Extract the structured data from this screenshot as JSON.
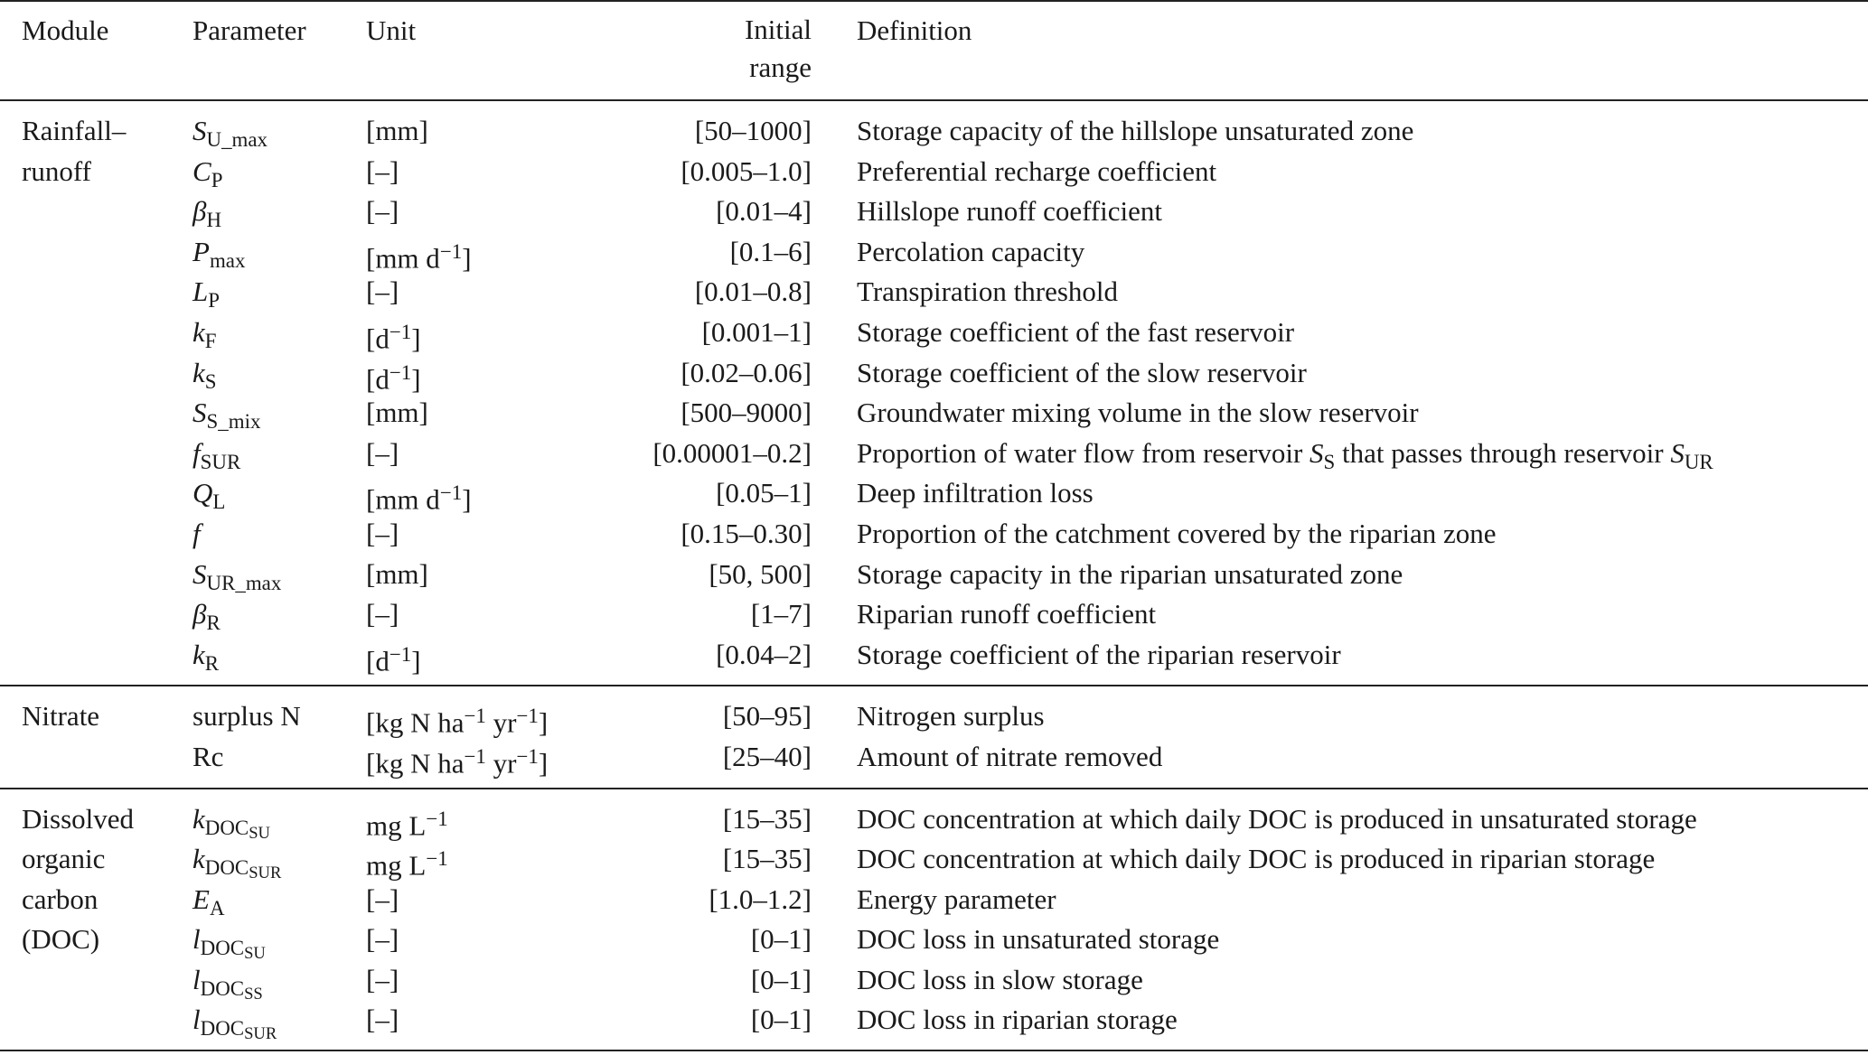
{
  "header": {
    "module": "Module",
    "parameter": "Parameter",
    "unit": "Unit",
    "range": [
      "Initial",
      "range"
    ],
    "definition": "Definition"
  },
  "groups": [
    {
      "module": [
        "Rainfall–",
        "runoff"
      ],
      "rows": [
        {
          "parameter": [
            {
              "i": "S"
            },
            {
              "sub": "U_max"
            }
          ],
          "unit": "[mm]",
          "range": "[50–1000]",
          "definition": "Storage capacity of the hillslope unsaturated zone"
        },
        {
          "parameter": [
            {
              "i": "C"
            },
            {
              "sub": "P"
            }
          ],
          "unit": "[–]",
          "range": "[0.005–1.0]",
          "definition": "Preferential recharge coefficient"
        },
        {
          "parameter": [
            {
              "i": "β"
            },
            {
              "sub": "H"
            }
          ],
          "unit": "[–]",
          "range": "[0.01–4]",
          "definition": "Hillslope runoff coefficient"
        },
        {
          "parameter": [
            {
              "i": "P"
            },
            {
              "sub": "max"
            }
          ],
          "unit": [
            {
              "t": "[mm d"
            },
            {
              "sup": "−1"
            },
            {
              "t": "]"
            }
          ],
          "range": "[0.1–6]",
          "definition": "Percolation capacity"
        },
        {
          "parameter": [
            {
              "i": "L"
            },
            {
              "sub": "P"
            }
          ],
          "unit": "[–]",
          "range": "[0.01–0.8]",
          "definition": "Transpiration threshold"
        },
        {
          "parameter": [
            {
              "i": "k"
            },
            {
              "sub": "F"
            }
          ],
          "unit": [
            {
              "t": "[d"
            },
            {
              "sup": "−1"
            },
            {
              "t": "]"
            }
          ],
          "range": "[0.001–1]",
          "definition": "Storage coefficient of the fast reservoir"
        },
        {
          "parameter": [
            {
              "i": "k"
            },
            {
              "sub": "S"
            }
          ],
          "unit": [
            {
              "t": "[d"
            },
            {
              "sup": "−1"
            },
            {
              "t": "]"
            }
          ],
          "range": "[0.02–0.06]",
          "definition": "Storage coefficient of the slow reservoir"
        },
        {
          "parameter": [
            {
              "i": "S"
            },
            {
              "sub": "S_mix"
            }
          ],
          "unit": "[mm]",
          "range": "[500–9000]",
          "definition": "Groundwater mixing volume in the slow reservoir"
        },
        {
          "parameter": [
            {
              "i": "f"
            },
            {
              "sub": "SUR"
            }
          ],
          "unit": "[–]",
          "range": "[0.00001–0.2]",
          "definition": [
            {
              "t": "Proportion of water flow from reservoir "
            },
            {
              "i": "S"
            },
            {
              "sub": "S"
            },
            {
              "t": " that passes through reservoir "
            },
            {
              "i": "S"
            },
            {
              "sub": "UR"
            }
          ]
        },
        {
          "parameter": [
            {
              "i": "Q"
            },
            {
              "sub": "L"
            }
          ],
          "unit": [
            {
              "t": "[mm d"
            },
            {
              "sup": "−1"
            },
            {
              "t": "]"
            }
          ],
          "range": "[0.05–1]",
          "definition": "Deep infiltration loss"
        },
        {
          "parameter": [
            {
              "i": "f"
            }
          ],
          "unit": "[–]",
          "range": "[0.15–0.30]",
          "definition": "Proportion of the catchment covered by the riparian zone"
        },
        {
          "parameter": [
            {
              "i": "S"
            },
            {
              "sub": "UR_max"
            }
          ],
          "unit": "[mm]",
          "range": "[50, 500]",
          "definition": "Storage capacity in the riparian unsaturated zone"
        },
        {
          "parameter": [
            {
              "i": "β"
            },
            {
              "sub": "R"
            }
          ],
          "unit": "[–]",
          "range": "[1–7]",
          "definition": "Riparian runoff coefficient"
        },
        {
          "parameter": [
            {
              "i": "k"
            },
            {
              "sub": "R"
            }
          ],
          "unit": [
            {
              "t": "[d"
            },
            {
              "sup": "−1"
            },
            {
              "t": "]"
            }
          ],
          "range": "[0.04–2]",
          "definition": "Storage coefficient of the riparian reservoir"
        }
      ]
    },
    {
      "module": [
        "Nitrate"
      ],
      "rows": [
        {
          "parameter": "surplus N",
          "unit": [
            {
              "t": "[kg N ha"
            },
            {
              "sup": "−1"
            },
            {
              "t": " yr"
            },
            {
              "sup": "−1"
            },
            {
              "t": "]"
            }
          ],
          "range": "[50–95]",
          "definition": "Nitrogen surplus"
        },
        {
          "parameter": "Rc",
          "unit": [
            {
              "t": "[kg N ha"
            },
            {
              "sup": "−1"
            },
            {
              "t": " yr"
            },
            {
              "sup": "−1"
            },
            {
              "t": "]"
            }
          ],
          "range": "[25–40]",
          "definition": "Amount of nitrate removed"
        }
      ]
    },
    {
      "module": [
        "Dissolved",
        "organic",
        "carbon",
        "(DOC)"
      ],
      "rows": [
        {
          "parameter": [
            {
              "i": "k"
            },
            {
              "sub": "DOC"
            },
            {
              "subsub": "SU"
            }
          ],
          "unit": [
            {
              "t": "mg L"
            },
            {
              "sup": "−1"
            }
          ],
          "range": "[15–35]",
          "definition": "DOC concentration at which daily DOC is produced in unsaturated storage"
        },
        {
          "parameter": [
            {
              "i": "k"
            },
            {
              "sub": "DOC"
            },
            {
              "subsub": "SUR"
            }
          ],
          "unit": [
            {
              "t": "mg L"
            },
            {
              "sup": "−1"
            }
          ],
          "range": "[15–35]",
          "definition": "DOC concentration at which daily DOC is produced in riparian storage"
        },
        {
          "parameter": [
            {
              "i": "E"
            },
            {
              "sub": "A"
            }
          ],
          "unit": "[–]",
          "range": "[1.0–1.2]",
          "definition": "Energy parameter"
        },
        {
          "parameter": [
            {
              "i": "l"
            },
            {
              "sub": "DOC"
            },
            {
              "subsub": "SU"
            }
          ],
          "unit": "[–]",
          "range": "[0–1]",
          "definition": "DOC loss in unsaturated storage"
        },
        {
          "parameter": [
            {
              "i": "l"
            },
            {
              "sub": "DOC"
            },
            {
              "subsub": "SS"
            }
          ],
          "unit": "[–]",
          "range": "[0–1]",
          "definition": "DOC loss in slow storage"
        },
        {
          "parameter": [
            {
              "i": "l"
            },
            {
              "sub": "DOC"
            },
            {
              "subsub": "SUR"
            }
          ],
          "unit": "[–]",
          "range": "[0–1]",
          "definition": "DOC loss in riparian storage"
        }
      ]
    }
  ]
}
